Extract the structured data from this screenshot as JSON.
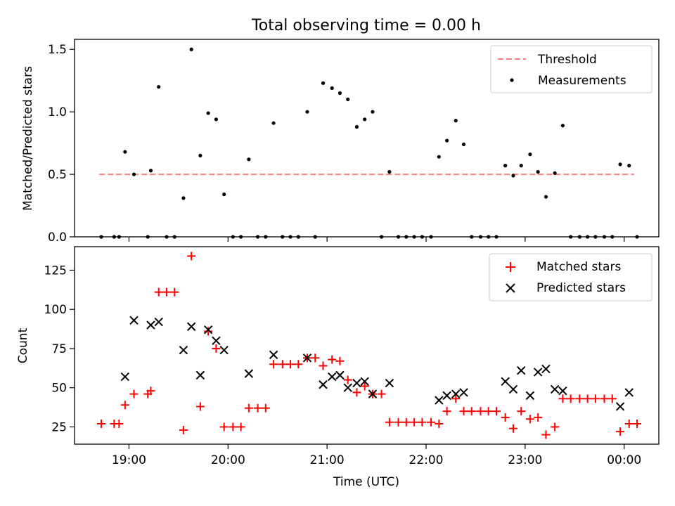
{
  "chart_data": [
    {
      "type": "scatter",
      "title": "Total observing time = 0.00 h",
      "xlabel": "",
      "ylabel": "Matched/Predicted stars",
      "xlim": [
        18.45,
        24.35
      ],
      "ylim": [
        0,
        1.58
      ],
      "yticks": [
        0.0,
        0.5,
        1.0,
        1.5
      ],
      "ytick_labels": [
        "0.0",
        "0.5",
        "1.0",
        "1.5"
      ],
      "legend_position": "top-right",
      "threshold": {
        "name": "Threshold",
        "value": 0.5,
        "x_range": [
          18.7,
          24.1
        ],
        "color": "#ff7f7f",
        "style": "dashed"
      },
      "series": [
        {
          "name": "Measurements",
          "marker": "dot",
          "color": "#000000",
          "points": [
            [
              18.72,
              0
            ],
            [
              18.85,
              0
            ],
            [
              18.9,
              0
            ],
            [
              18.96,
              0.68
            ],
            [
              19.05,
              0.5
            ],
            [
              19.19,
              0
            ],
            [
              19.22,
              0.53
            ],
            [
              19.3,
              1.2
            ],
            [
              19.38,
              0
            ],
            [
              19.46,
              0
            ],
            [
              19.55,
              0.31
            ],
            [
              19.63,
              1.5
            ],
            [
              19.72,
              0.65
            ],
            [
              19.8,
              0.99
            ],
            [
              19.88,
              0.94
            ],
            [
              19.96,
              0.34
            ],
            [
              20.05,
              0
            ],
            [
              20.13,
              0
            ],
            [
              20.21,
              0.62
            ],
            [
              20.3,
              0
            ],
            [
              20.38,
              0
            ],
            [
              20.46,
              0.91
            ],
            [
              20.55,
              0
            ],
            [
              20.63,
              0
            ],
            [
              20.71,
              0
            ],
            [
              20.8,
              1.0
            ],
            [
              20.88,
              0
            ],
            [
              20.96,
              1.23
            ],
            [
              21.05,
              1.19
            ],
            [
              21.13,
              1.15
            ],
            [
              21.21,
              1.1
            ],
            [
              21.3,
              0.88
            ],
            [
              21.38,
              0.94
            ],
            [
              21.46,
              1.0
            ],
            [
              21.55,
              0
            ],
            [
              21.63,
              0.52
            ],
            [
              21.72,
              0
            ],
            [
              21.8,
              0
            ],
            [
              21.88,
              0
            ],
            [
              21.96,
              0
            ],
            [
              22.05,
              0
            ],
            [
              22.13,
              0.64
            ],
            [
              22.21,
              0.77
            ],
            [
              22.3,
              0.93
            ],
            [
              22.38,
              0.74
            ],
            [
              22.46,
              0
            ],
            [
              22.55,
              0
            ],
            [
              22.63,
              0
            ],
            [
              22.71,
              0
            ],
            [
              22.8,
              0.57
            ],
            [
              22.88,
              0.49
            ],
            [
              22.96,
              0.57
            ],
            [
              23.05,
              0.66
            ],
            [
              23.13,
              0.52
            ],
            [
              23.21,
              0.32
            ],
            [
              23.3,
              0.51
            ],
            [
              23.38,
              0.89
            ],
            [
              23.46,
              0
            ],
            [
              23.55,
              0
            ],
            [
              23.63,
              0
            ],
            [
              23.71,
              0
            ],
            [
              23.8,
              0
            ],
            [
              23.88,
              0
            ],
            [
              23.96,
              0.58
            ],
            [
              24.05,
              0.57
            ],
            [
              24.13,
              0
            ]
          ]
        }
      ]
    },
    {
      "type": "scatter",
      "title": "",
      "xlabel": "Time (UTC)",
      "ylabel": "Count",
      "xlim": [
        18.45,
        24.35
      ],
      "ylim": [
        14,
        140
      ],
      "yticks": [
        25,
        50,
        75,
        100,
        125
      ],
      "ytick_labels": [
        "25",
        "50",
        "75",
        "100",
        "125"
      ],
      "xticks": [
        19,
        20,
        21,
        22,
        23,
        24
      ],
      "xtick_labels": [
        "19:00",
        "20:00",
        "21:00",
        "22:00",
        "23:00",
        "00:00"
      ],
      "legend_position": "top-right",
      "series": [
        {
          "name": "Matched stars",
          "marker": "plus",
          "color": "#ff0000",
          "points": [
            [
              18.72,
              27
            ],
            [
              18.85,
              27
            ],
            [
              18.9,
              27
            ],
            [
              18.96,
              39
            ],
            [
              19.05,
              46
            ],
            [
              19.19,
              46
            ],
            [
              19.22,
              48
            ],
            [
              19.3,
              111
            ],
            [
              19.38,
              111
            ],
            [
              19.46,
              111
            ],
            [
              19.55,
              23
            ],
            [
              19.63,
              134
            ],
            [
              19.72,
              38
            ],
            [
              19.8,
              86
            ],
            [
              19.88,
              75
            ],
            [
              19.96,
              25
            ],
            [
              20.05,
              25
            ],
            [
              20.13,
              25
            ],
            [
              20.21,
              37
            ],
            [
              20.3,
              37
            ],
            [
              20.38,
              37
            ],
            [
              20.46,
              65
            ],
            [
              20.55,
              65
            ],
            [
              20.63,
              65
            ],
            [
              20.71,
              65
            ],
            [
              20.8,
              69
            ],
            [
              20.88,
              69
            ],
            [
              20.96,
              64
            ],
            [
              21.05,
              68
            ],
            [
              21.13,
              67
            ],
            [
              21.21,
              55
            ],
            [
              21.3,
              47
            ],
            [
              21.38,
              51
            ],
            [
              21.46,
              46
            ],
            [
              21.55,
              46
            ],
            [
              21.63,
              28
            ],
            [
              21.72,
              28
            ],
            [
              21.8,
              28
            ],
            [
              21.88,
              28
            ],
            [
              21.96,
              28
            ],
            [
              22.05,
              28
            ],
            [
              22.13,
              27
            ],
            [
              22.21,
              35
            ],
            [
              22.3,
              43
            ],
            [
              22.38,
              35
            ],
            [
              22.46,
              35
            ],
            [
              22.55,
              35
            ],
            [
              22.63,
              35
            ],
            [
              22.71,
              35
            ],
            [
              22.8,
              31
            ],
            [
              22.88,
              24
            ],
            [
              22.96,
              35
            ],
            [
              23.05,
              30
            ],
            [
              23.13,
              31
            ],
            [
              23.21,
              20
            ],
            [
              23.3,
              25
            ],
            [
              23.38,
              43
            ],
            [
              23.46,
              43
            ],
            [
              23.55,
              43
            ],
            [
              23.63,
              43
            ],
            [
              23.71,
              43
            ],
            [
              23.8,
              43
            ],
            [
              23.88,
              43
            ],
            [
              23.96,
              22
            ],
            [
              24.05,
              27
            ],
            [
              24.13,
              27
            ]
          ]
        },
        {
          "name": "Predicted stars",
          "marker": "x",
          "color": "#000000",
          "points": [
            [
              18.96,
              57
            ],
            [
              19.05,
              93
            ],
            [
              19.22,
              90
            ],
            [
              19.3,
              92
            ],
            [
              19.55,
              74
            ],
            [
              19.63,
              89
            ],
            [
              19.72,
              58
            ],
            [
              19.8,
              87
            ],
            [
              19.88,
              80
            ],
            [
              19.96,
              74
            ],
            [
              20.21,
              59
            ],
            [
              20.46,
              71
            ],
            [
              20.8,
              69
            ],
            [
              20.96,
              52
            ],
            [
              21.05,
              57
            ],
            [
              21.13,
              58
            ],
            [
              21.21,
              50
            ],
            [
              21.3,
              53
            ],
            [
              21.38,
              54
            ],
            [
              21.46,
              46
            ],
            [
              21.63,
              53
            ],
            [
              22.13,
              42
            ],
            [
              22.21,
              45
            ],
            [
              22.3,
              46
            ],
            [
              22.38,
              47
            ],
            [
              22.8,
              54
            ],
            [
              22.88,
              49
            ],
            [
              22.96,
              61
            ],
            [
              23.05,
              45
            ],
            [
              23.13,
              60
            ],
            [
              23.21,
              62
            ],
            [
              23.3,
              49
            ],
            [
              23.38,
              48
            ],
            [
              23.96,
              38
            ],
            [
              24.05,
              47
            ]
          ]
        }
      ]
    }
  ]
}
